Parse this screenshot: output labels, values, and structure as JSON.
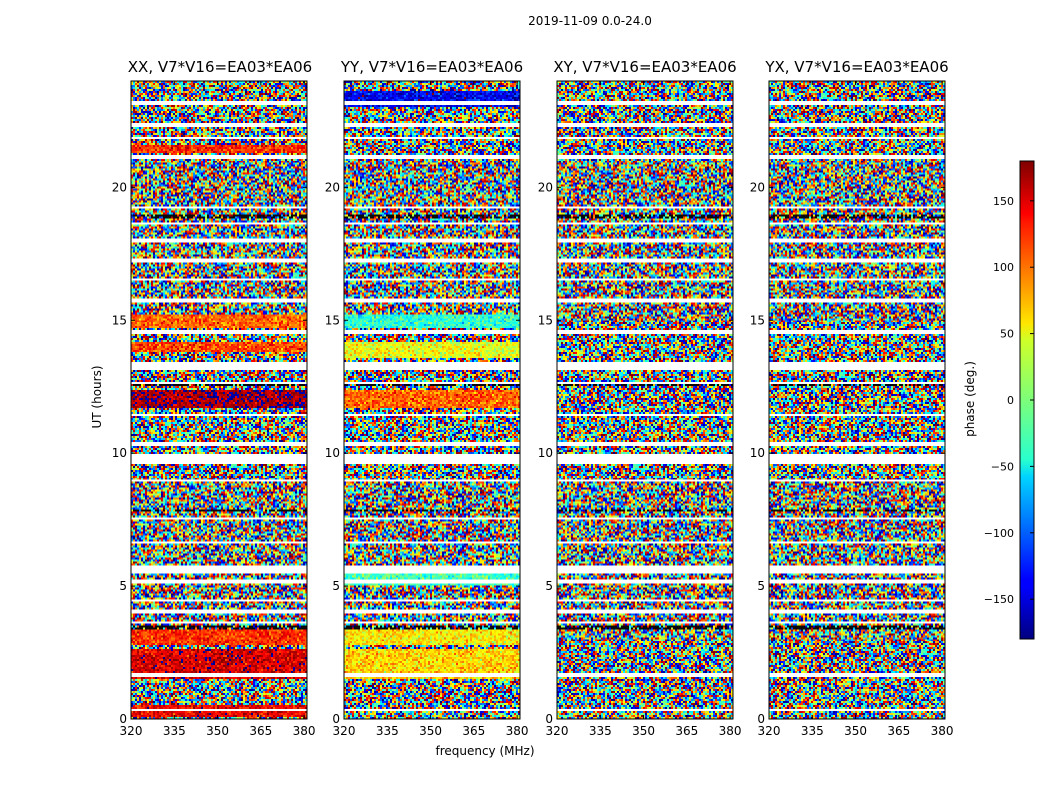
{
  "chart_data": {
    "type": "heatmap",
    "title": "2019-11-09 0.0-24.0",
    "xlabel": "frequency (MHz)",
    "ylabel": "UT (hours)",
    "xlim": [
      320,
      381
    ],
    "ylim": [
      0,
      24
    ],
    "x_ticks": [
      320,
      335,
      350,
      365,
      380
    ],
    "y_ticks": [
      0,
      5,
      10,
      15,
      20
    ],
    "panels": [
      {
        "title": "XX, V7*V16=EA03*EA06",
        "bias_bands": [
          [
            0.1,
            0.5,
            140
          ],
          [
            1.5,
            2.6,
            150
          ],
          [
            2.8,
            3.5,
            120
          ],
          [
            11.7,
            12.4,
            170
          ],
          [
            13.8,
            14.2,
            110
          ],
          [
            14.7,
            15.2,
            100
          ],
          [
            21.3,
            21.6,
            120
          ]
        ]
      },
      {
        "title": "YY, V7*V16=EA03*EA06",
        "bias_bands": [
          [
            1.5,
            2.6,
            60
          ],
          [
            2.8,
            3.5,
            50
          ],
          [
            5.0,
            5.6,
            -20
          ],
          [
            11.7,
            12.4,
            100
          ],
          [
            13.6,
            14.2,
            40
          ],
          [
            14.7,
            15.2,
            -30
          ],
          [
            23.0,
            23.6,
            -140
          ]
        ]
      },
      {
        "title": "XY, V7*V16=EA03*EA06",
        "bias_bands": []
      },
      {
        "title": "YX, V7*V16=EA03*EA06",
        "bias_bands": []
      }
    ],
    "blank_bands": [
      [
        0.3,
        0.35
      ],
      [
        0.5,
        0.55
      ],
      [
        1.6,
        1.7
      ],
      [
        3.6,
        3.7
      ],
      [
        4.0,
        4.15
      ],
      [
        4.4,
        4.5
      ],
      [
        5.1,
        5.25
      ],
      [
        5.5,
        5.75
      ],
      [
        6.6,
        6.7
      ],
      [
        7.5,
        7.6
      ],
      [
        8.9,
        9.0
      ],
      [
        9.6,
        9.95
      ],
      [
        10.3,
        10.4
      ],
      [
        11.4,
        11.5
      ],
      [
        12.6,
        12.7
      ],
      [
        13.1,
        13.45
      ],
      [
        14.5,
        14.6
      ],
      [
        15.7,
        15.8
      ],
      [
        16.5,
        16.6
      ],
      [
        17.2,
        17.3
      ],
      [
        17.9,
        18.05
      ],
      [
        18.6,
        18.7
      ],
      [
        19.2,
        19.3
      ],
      [
        21.1,
        21.2
      ],
      [
        21.8,
        21.9
      ],
      [
        22.3,
        22.4
      ],
      [
        23.1,
        23.25
      ]
    ],
    "dark_bands": [
      [
        3.4,
        3.5
      ],
      [
        7.8,
        7.9
      ],
      [
        9.9,
        10.0
      ],
      [
        12.5,
        12.6
      ],
      [
        18.8,
        19.0
      ]
    ],
    "colorbar": {
      "label": "phase (deg.)",
      "range": [
        -180,
        180
      ],
      "ticks": [
        -150,
        -100,
        -50,
        0,
        50,
        100,
        150
      ],
      "colormap": "jet"
    }
  }
}
